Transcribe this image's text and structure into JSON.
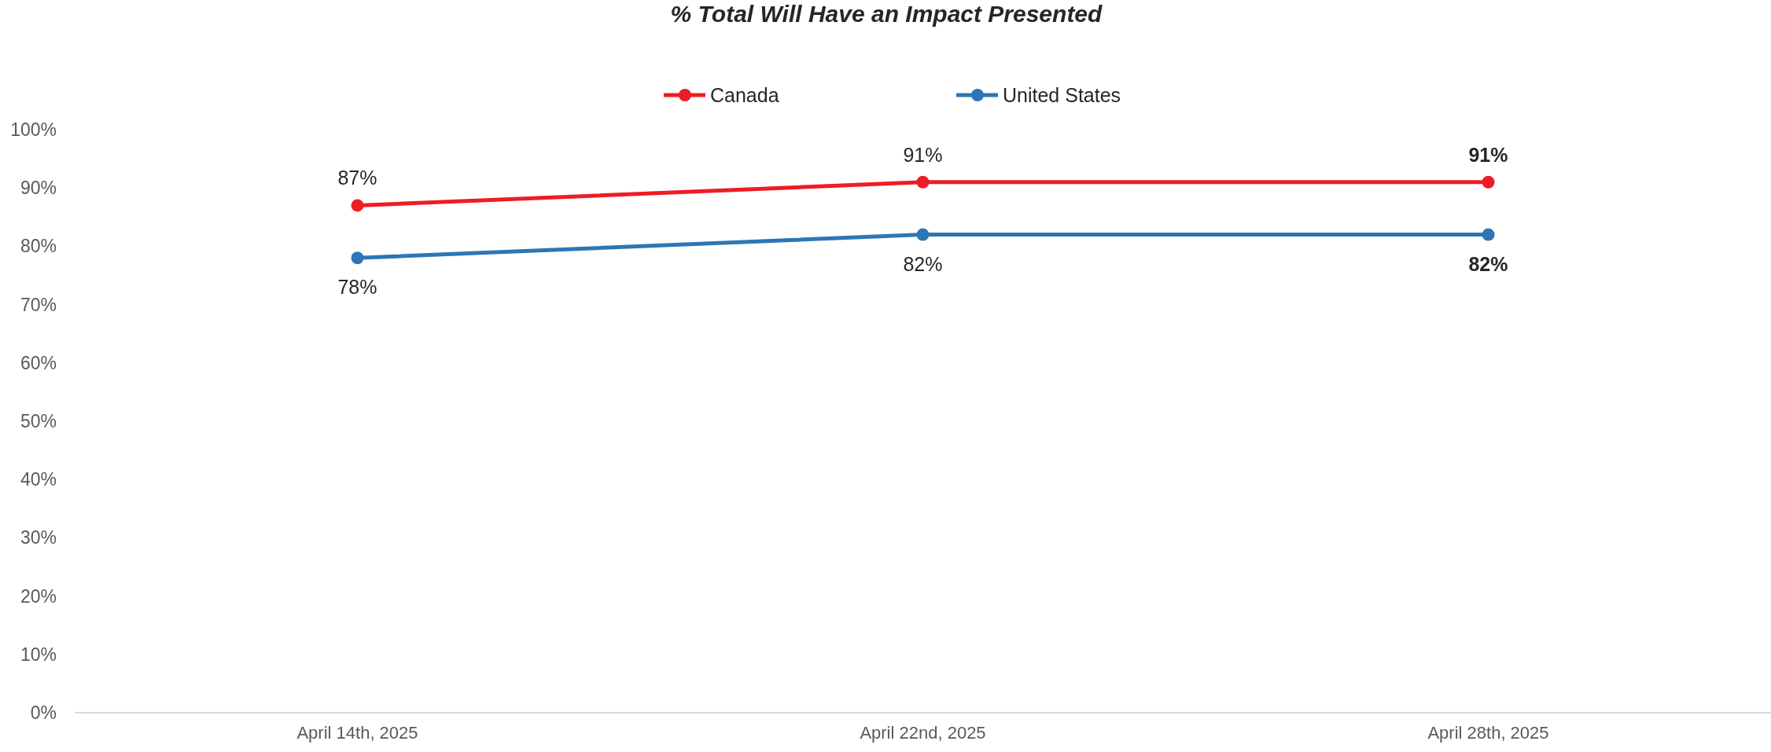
{
  "chart_data": {
    "type": "line",
    "title": "% Total Will Have an Impact Presented",
    "categories": [
      "April 14th, 2025",
      "April 22nd, 2025",
      "April 28th, 2025"
    ],
    "series": [
      {
        "name": "Canada",
        "color": "#ee1c25",
        "values": [
          87,
          91,
          91
        ],
        "value_labels": [
          "87%",
          "91%",
          "91%"
        ]
      },
      {
        "name": "United States",
        "color": "#2e75b6",
        "values": [
          78,
          82,
          82
        ],
        "value_labels": [
          "78%",
          "82%",
          "82%"
        ]
      }
    ],
    "ylim": [
      0,
      100
    ],
    "yticks": [
      {
        "value": 0,
        "label": "0%"
      },
      {
        "value": 10,
        "label": "10%"
      },
      {
        "value": 20,
        "label": "20%"
      },
      {
        "value": 30,
        "label": "30%"
      },
      {
        "value": 40,
        "label": "40%"
      },
      {
        "value": 50,
        "label": "50%"
      },
      {
        "value": 60,
        "label": "60%"
      },
      {
        "value": 70,
        "label": "70%"
      },
      {
        "value": 80,
        "label": "80%"
      },
      {
        "value": 90,
        "label": "90%"
      },
      {
        "value": 100,
        "label": "100%"
      }
    ],
    "legend": "top",
    "marker": "circle",
    "line_style": "solid"
  }
}
